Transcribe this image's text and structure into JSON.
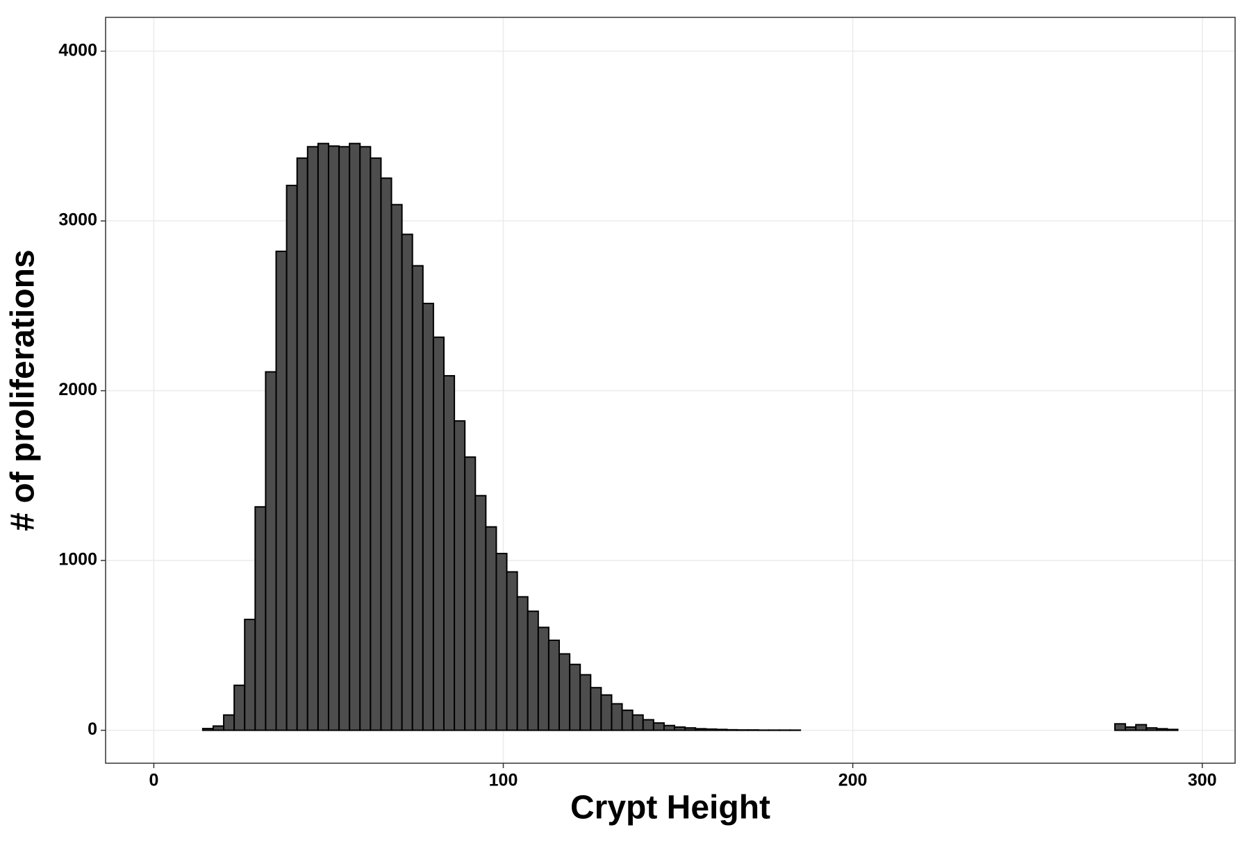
{
  "chart_data": {
    "type": "histogram",
    "x_label": "Crypt Height",
    "y_label": "# of proliferations",
    "bins": [
      2,
      5,
      8,
      11,
      14,
      17,
      20,
      23,
      26,
      29,
      32,
      35,
      38,
      41,
      44,
      47,
      50,
      53,
      56,
      59,
      62,
      65,
      68,
      71,
      74,
      77,
      80,
      83,
      86,
      89,
      92,
      95,
      98,
      101,
      104,
      107,
      110,
      113,
      116,
      119,
      122,
      125,
      128,
      131,
      134,
      137,
      140,
      143,
      146,
      149,
      152,
      155,
      158,
      161,
      164,
      167,
      170,
      173,
      176,
      179,
      182,
      185,
      188,
      191,
      194,
      197,
      200,
      203,
      206,
      209,
      212,
      215,
      218,
      221,
      224,
      227,
      230,
      233,
      236,
      239,
      242,
      245,
      248,
      251,
      254,
      257,
      260,
      263,
      266,
      269,
      272,
      275,
      278,
      281,
      284,
      287,
      290,
      293
    ],
    "counts": [
      0,
      0,
      0,
      0,
      10,
      25,
      90,
      265,
      653,
      1316,
      2111,
      2821,
      3209,
      3370,
      3437,
      3456,
      3441,
      3437,
      3456,
      3437,
      3370,
      3252,
      3096,
      2921,
      2736,
      2514,
      2315,
      2088,
      1822,
      1609,
      1382,
      1198,
      1041,
      933,
      786,
      701,
      606,
      530,
      450,
      388,
      327,
      251,
      208,
      156,
      118,
      90,
      62,
      43,
      28,
      19,
      14,
      9,
      7,
      5,
      3,
      2,
      2,
      1,
      1,
      1,
      1,
      0,
      0,
      0,
      0,
      0,
      0,
      0,
      0,
      0,
      0,
      0,
      0,
      0,
      0,
      0,
      0,
      0,
      0,
      0,
      0,
      0,
      0,
      0,
      0,
      0,
      0,
      0,
      0,
      0,
      0,
      38,
      19,
      33,
      14,
      9,
      5
    ],
    "color": "#4d4d4d",
    "xlim": [
      -13.8,
      309.4
    ],
    "ylim": [
      -194,
      4199
    ],
    "xticks": [
      0,
      100,
      200,
      300
    ],
    "yticks": [
      0,
      1000,
      2000,
      3000,
      4000
    ],
    "grid": true
  }
}
